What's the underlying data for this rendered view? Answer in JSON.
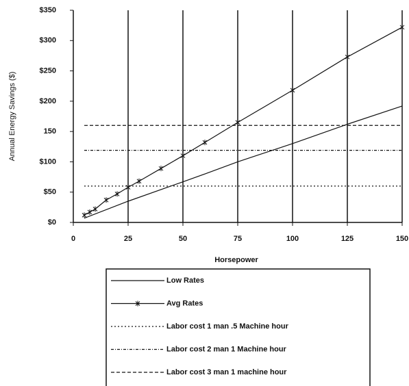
{
  "chart_data": {
    "type": "line",
    "x_label": "Horsepower",
    "y_label": "Annual Energy Savings ($)",
    "xlim": [
      0,
      150
    ],
    "xticks": [
      0,
      25,
      50,
      75,
      100,
      125,
      150
    ],
    "ylim": [
      0,
      350
    ],
    "yticks": [
      {
        "value": 0,
        "label": "$0"
      },
      {
        "value": 50,
        "label": "$50"
      },
      {
        "value": 100,
        "label": "$100"
      },
      150,
      {
        "value": 200,
        "label": "$200"
      },
      {
        "value": 250,
        "label": "$250"
      },
      {
        "value": 300,
        "label": "$300"
      },
      {
        "value": 350,
        "label": "$350"
      }
    ],
    "grid": "x",
    "series": [
      {
        "name": "Low Rates",
        "color": "#111111",
        "dash": "none",
        "marker": "none",
        "x": [
          5,
          25,
          50,
          60,
          75,
          100,
          125,
          150
        ],
        "values": [
          7,
          35,
          67,
          80,
          100,
          130,
          162,
          192
        ]
      },
      {
        "name": "Avg Rates",
        "color": "#111111",
        "dash": "none",
        "marker": "star",
        "x": [
          5,
          7.5,
          10,
          15,
          20,
          25,
          30,
          40,
          50,
          60,
          75,
          100,
          125,
          150
        ],
        "values": [
          12,
          17,
          22,
          37,
          47,
          58,
          68,
          89,
          110,
          132,
          165,
          218,
          273,
          322
        ]
      },
      {
        "name": "Labor cost 1 man .5 Machine hour",
        "color": "#111111",
        "dash": "2,3",
        "marker": "none",
        "x": [
          5,
          150
        ],
        "values": [
          60,
          60
        ]
      },
      {
        "name": "Labor cost 2 man 1 Machine hour",
        "color": "#111111",
        "dash": "4,2,1,2",
        "marker": "none",
        "x": [
          5,
          150
        ],
        "values": [
          119,
          119
        ]
      },
      {
        "name": "Labor cost 3 man 1 machine hour",
        "color": "#111111",
        "dash": "5,3",
        "marker": "none",
        "x": [
          5,
          150
        ],
        "values": [
          160,
          160
        ]
      }
    ]
  }
}
